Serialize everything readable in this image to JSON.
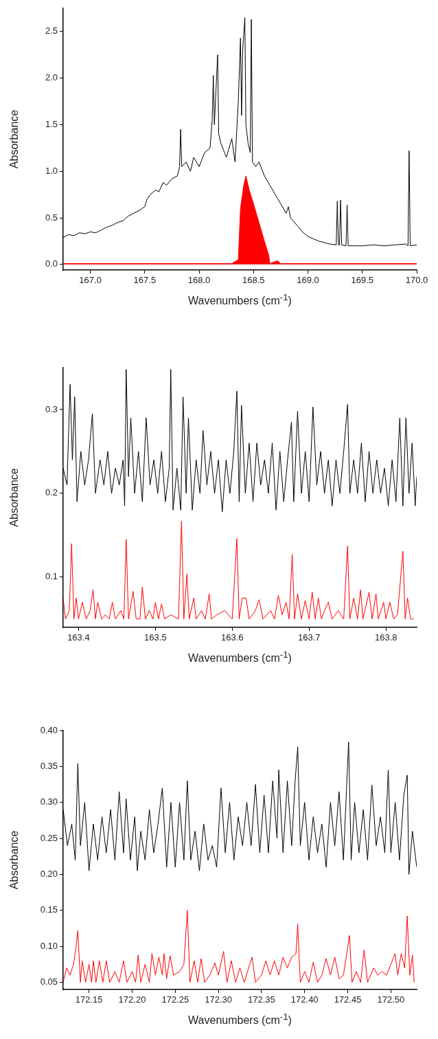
{
  "chart_data": [
    {
      "type": "line",
      "xlabel": "Wavenumbers (cm$^{-1}$)",
      "ylabel": "Absorbance",
      "xlim": [
        166.75,
        170.0
      ],
      "ylim": [
        -0.06,
        2.75
      ],
      "xticks": [
        {
          "value": 167,
          "label": "167.0"
        },
        {
          "value": 167.5,
          "label": "167.5"
        },
        {
          "value": 168,
          "label": "168.0"
        },
        {
          "value": 168.5,
          "label": "168.5"
        },
        {
          "value": 169,
          "label": "169.0"
        },
        {
          "value": 169.5,
          "label": "169.5"
        },
        {
          "value": 170,
          "label": "170.0"
        }
      ],
      "yticks": [
        {
          "value": 0,
          "label": "0.0"
        },
        0.5,
        {
          "value": 1,
          "label": "1.0"
        },
        1.5,
        {
          "value": 2,
          "label": "2.0"
        },
        2.5
      ],
      "series": [
        {
          "color": "#000000",
          "x": [
            166.75,
            166.8,
            166.85,
            166.9,
            166.95,
            167.0,
            167.05,
            167.1,
            167.15,
            167.2,
            167.25,
            167.3,
            167.35,
            167.4,
            167.45,
            167.5,
            167.52,
            167.55,
            167.6,
            167.63,
            167.67,
            167.7,
            167.75,
            167.8,
            167.82,
            167.83,
            167.84,
            167.88,
            167.92,
            167.95,
            168.0,
            168.05,
            168.1,
            168.12,
            168.13,
            168.14,
            168.17,
            168.18,
            168.2,
            168.25,
            168.3,
            168.33,
            168.36,
            168.38,
            168.39,
            168.4,
            168.42,
            168.43,
            168.45,
            168.47,
            168.48,
            168.49,
            168.52,
            168.55,
            168.6,
            168.65,
            168.7,
            168.75,
            168.8,
            168.82,
            168.84,
            168.9,
            168.95,
            169.0,
            169.1,
            169.2,
            169.26,
            169.27,
            169.28,
            169.29,
            169.3,
            169.31,
            169.35,
            169.36,
            169.37,
            169.5,
            169.6,
            169.7,
            169.8,
            169.9,
            169.92,
            169.93,
            169.94,
            170.0
          ],
          "values": [
            0.29,
            0.32,
            0.31,
            0.34,
            0.33,
            0.35,
            0.34,
            0.37,
            0.4,
            0.42,
            0.45,
            0.47,
            0.52,
            0.55,
            0.58,
            0.62,
            0.7,
            0.75,
            0.8,
            0.78,
            0.88,
            0.85,
            0.92,
            0.95,
            1.05,
            1.45,
            1.05,
            1.1,
            1.0,
            1.15,
            1.05,
            1.2,
            1.25,
            1.55,
            2.03,
            1.5,
            2.25,
            1.4,
            1.3,
            1.15,
            1.35,
            1.1,
            1.75,
            2.43,
            1.6,
            2.3,
            2.65,
            1.5,
            1.3,
            1.2,
            2.63,
            1.1,
            1.05,
            1.1,
            0.95,
            0.85,
            0.75,
            0.65,
            0.55,
            0.62,
            0.5,
            0.42,
            0.35,
            0.3,
            0.25,
            0.22,
            0.21,
            0.68,
            0.21,
            0.21,
            0.69,
            0.21,
            0.2,
            0.64,
            0.2,
            0.2,
            0.21,
            0.2,
            0.21,
            0.22,
            0.2,
            1.22,
            0.2,
            0.21
          ]
        },
        {
          "type": "area",
          "color": "#ff0000",
          "x": [
            166.75,
            167.5,
            168.3,
            168.36,
            168.38,
            168.41,
            168.43,
            168.46,
            168.5,
            168.55,
            168.6,
            168.64,
            168.65,
            168.72,
            168.75,
            170.0
          ],
          "values": [
            0.01,
            0.01,
            0.01,
            0.05,
            0.6,
            0.85,
            0.95,
            0.8,
            0.65,
            0.45,
            0.25,
            0.1,
            0.01,
            0.04,
            0.01,
            0.01
          ]
        }
      ]
    },
    {
      "type": "line",
      "xlabel": "Wavenumbers (cm$^{-1}$)",
      "ylabel": "Absorbance",
      "xlim": [
        163.38,
        163.84
      ],
      "ylim": [
        0.04,
        0.35
      ],
      "xticks": [
        163.4,
        163.5,
        163.6,
        163.7,
        163.8
      ],
      "yticks": [
        0.1,
        0.2,
        0.3
      ],
      "series": [
        {
          "color": "#000000",
          "x": [
            163.38,
            163.385,
            163.389,
            163.392,
            163.395,
            163.398,
            163.403,
            163.408,
            163.413,
            163.418,
            163.422,
            163.428,
            163.433,
            163.438,
            163.443,
            163.448,
            163.453,
            163.458,
            163.46,
            163.462,
            163.465,
            163.468,
            163.473,
            163.478,
            163.483,
            163.488,
            163.493,
            163.498,
            163.503,
            163.508,
            163.513,
            163.518,
            163.52,
            163.523,
            163.528,
            163.533,
            163.536,
            163.54,
            163.543,
            163.548,
            163.553,
            163.558,
            163.562,
            163.567,
            163.572,
            163.577,
            163.582,
            163.587,
            163.592,
            163.597,
            163.602,
            163.606,
            163.609,
            163.612,
            163.617,
            163.622,
            163.627,
            163.632,
            163.637,
            163.642,
            163.647,
            163.652,
            163.657,
            163.662,
            163.667,
            163.672,
            163.677,
            163.68,
            163.685,
            163.69,
            163.695,
            163.7,
            163.705,
            163.71,
            163.715,
            163.72,
            163.725,
            163.73,
            163.735,
            163.74,
            163.745,
            163.75,
            163.753,
            163.758,
            163.763,
            163.768,
            163.773,
            163.778,
            163.783,
            163.788,
            163.793,
            163.798,
            163.803,
            163.808,
            163.813,
            163.818,
            163.822,
            163.826,
            163.83,
            163.834,
            163.838,
            163.84
          ],
          "values": [
            0.23,
            0.21,
            0.33,
            0.24,
            0.315,
            0.19,
            0.25,
            0.21,
            0.24,
            0.295,
            0.2,
            0.24,
            0.21,
            0.25,
            0.2,
            0.23,
            0.21,
            0.24,
            0.185,
            0.348,
            0.22,
            0.29,
            0.2,
            0.25,
            0.19,
            0.29,
            0.21,
            0.24,
            0.2,
            0.25,
            0.19,
            0.23,
            0.348,
            0.18,
            0.23,
            0.18,
            0.315,
            0.2,
            0.29,
            0.18,
            0.24,
            0.2,
            0.275,
            0.21,
            0.25,
            0.2,
            0.24,
            0.178,
            0.24,
            0.2,
            0.25,
            0.322,
            0.19,
            0.305,
            0.2,
            0.26,
            0.19,
            0.26,
            0.21,
            0.24,
            0.2,
            0.26,
            0.18,
            0.25,
            0.19,
            0.24,
            0.285,
            0.19,
            0.298,
            0.2,
            0.25,
            0.19,
            0.303,
            0.21,
            0.25,
            0.2,
            0.24,
            0.185,
            0.24,
            0.2,
            0.25,
            0.306,
            0.2,
            0.24,
            0.2,
            0.26,
            0.19,
            0.25,
            0.2,
            0.24,
            0.2,
            0.23,
            0.185,
            0.24,
            0.19,
            0.29,
            0.185,
            0.29,
            0.2,
            0.26,
            0.185,
            0.22
          ]
        },
        {
          "color": "#ff0000",
          "x": [
            163.38,
            163.383,
            163.388,
            163.391,
            163.394,
            163.397,
            163.4,
            163.405,
            163.41,
            163.415,
            163.419,
            163.422,
            163.425,
            163.43,
            163.435,
            163.44,
            163.444,
            163.448,
            163.455,
            163.459,
            163.462,
            163.465,
            163.471,
            163.475,
            163.48,
            163.483,
            163.487,
            163.492,
            163.497,
            163.5,
            163.504,
            163.508,
            163.512,
            163.52,
            163.53,
            163.534,
            163.537,
            163.541,
            163.544,
            163.55,
            163.553,
            163.56,
            163.565,
            163.57,
            163.573,
            163.58,
            163.59,
            163.6,
            163.606,
            163.609,
            163.613,
            163.618,
            163.622,
            163.63,
            163.635,
            163.64,
            163.65,
            163.655,
            163.66,
            163.665,
            163.67,
            163.674,
            163.678,
            163.681,
            163.685,
            163.69,
            163.695,
            163.7,
            163.704,
            163.708,
            163.712,
            163.716,
            163.72,
            163.725,
            163.73,
            163.738,
            163.745,
            163.75,
            163.753,
            163.758,
            163.763,
            163.767,
            163.77,
            163.778,
            163.782,
            163.787,
            163.79,
            163.797,
            163.8,
            163.805,
            163.81,
            163.815,
            163.822,
            163.825,
            163.828,
            163.832,
            163.836
          ],
          "values": [
            0.075,
            0.05,
            0.06,
            0.14,
            0.05,
            0.075,
            0.05,
            0.07,
            0.05,
            0.06,
            0.085,
            0.05,
            0.07,
            0.05,
            0.055,
            0.05,
            0.07,
            0.05,
            0.06,
            0.05,
            0.145,
            0.05,
            0.083,
            0.05,
            0.05,
            0.088,
            0.05,
            0.06,
            0.05,
            0.07,
            0.05,
            0.068,
            0.05,
            0.055,
            0.05,
            0.167,
            0.05,
            0.104,
            0.05,
            0.075,
            0.05,
            0.06,
            0.05,
            0.08,
            0.05,
            0.055,
            0.06,
            0.05,
            0.146,
            0.05,
            0.075,
            0.075,
            0.05,
            0.06,
            0.073,
            0.05,
            0.06,
            0.05,
            0.078,
            0.055,
            0.07,
            0.05,
            0.127,
            0.05,
            0.08,
            0.05,
            0.072,
            0.05,
            0.082,
            0.05,
            0.075,
            0.05,
            0.06,
            0.07,
            0.05,
            0.06,
            0.05,
            0.137,
            0.05,
            0.075,
            0.05,
            0.085,
            0.05,
            0.082,
            0.05,
            0.08,
            0.05,
            0.07,
            0.05,
            0.07,
            0.05,
            0.055,
            0.131,
            0.05,
            0.075,
            0.05,
            0.05
          ]
        }
      ]
    },
    {
      "type": "line",
      "xlabel": "Wavenumbers (cm$^{-1}$)",
      "ylabel": "Absorbance",
      "xlim": [
        172.12,
        172.53
      ],
      "ylim": [
        0.04,
        0.4
      ],
      "xticks": [
        172.15,
        {
          "value": 172.2,
          "label": "172.20"
        },
        172.25,
        {
          "value": 172.3,
          "label": "172.30"
        },
        172.35,
        {
          "value": 172.4,
          "label": "172.40"
        },
        172.45,
        {
          "value": 172.5,
          "label": "172.50"
        }
      ],
      "yticks": [
        0.05,
        {
          "value": 0.1,
          "label": "0.10"
        },
        0.15,
        {
          "value": 0.2,
          "label": "0.20"
        },
        0.25,
        {
          "value": 0.3,
          "label": "0.30"
        },
        0.35,
        {
          "value": 0.4,
          "label": "0.40"
        }
      ],
      "series": [
        {
          "color": "#000000",
          "x": [
            172.12,
            172.125,
            172.13,
            172.134,
            172.137,
            172.14,
            172.145,
            172.15,
            172.155,
            172.16,
            172.165,
            172.17,
            172.175,
            172.18,
            172.185,
            172.19,
            172.193,
            172.198,
            172.203,
            172.206,
            172.21,
            172.215,
            172.22,
            172.225,
            172.23,
            172.235,
            172.24,
            172.245,
            172.25,
            172.255,
            172.26,
            172.264,
            172.268,
            172.273,
            172.278,
            172.283,
            172.288,
            172.293,
            172.298,
            172.303,
            172.308,
            172.313,
            172.318,
            172.323,
            172.328,
            172.333,
            172.338,
            172.343,
            172.348,
            172.353,
            172.358,
            172.363,
            172.368,
            172.37,
            172.375,
            172.38,
            172.385,
            172.389,
            172.392,
            172.395,
            172.4,
            172.405,
            172.41,
            172.415,
            172.42,
            172.425,
            172.43,
            172.435,
            172.44,
            172.445,
            172.451,
            172.454,
            172.458,
            172.463,
            172.468,
            172.473,
            172.478,
            172.483,
            172.488,
            172.493,
            172.497,
            172.5,
            172.505,
            172.51,
            172.515,
            172.519,
            172.521,
            172.525,
            172.53
          ],
          "values": [
            0.29,
            0.24,
            0.27,
            0.22,
            0.354,
            0.24,
            0.3,
            0.205,
            0.27,
            0.22,
            0.28,
            0.23,
            0.29,
            0.22,
            0.315,
            0.23,
            0.305,
            0.22,
            0.28,
            0.205,
            0.26,
            0.22,
            0.29,
            0.23,
            0.27,
            0.32,
            0.21,
            0.3,
            0.21,
            0.3,
            0.22,
            0.33,
            0.22,
            0.26,
            0.205,
            0.27,
            0.22,
            0.24,
            0.21,
            0.32,
            0.23,
            0.3,
            0.22,
            0.28,
            0.24,
            0.3,
            0.24,
            0.325,
            0.23,
            0.31,
            0.23,
            0.33,
            0.25,
            0.345,
            0.23,
            0.33,
            0.24,
            0.33,
            0.377,
            0.24,
            0.3,
            0.22,
            0.28,
            0.23,
            0.27,
            0.21,
            0.3,
            0.24,
            0.315,
            0.22,
            0.384,
            0.22,
            0.3,
            0.23,
            0.29,
            0.22,
            0.324,
            0.24,
            0.28,
            0.23,
            0.345,
            0.23,
            0.3,
            0.22,
            0.31,
            0.338,
            0.2,
            0.26,
            0.21
          ]
        },
        {
          "color": "#ff0000",
          "x": [
            172.12,
            172.124,
            172.128,
            172.132,
            172.135,
            172.137,
            172.14,
            172.142,
            172.146,
            172.15,
            172.153,
            172.155,
            172.158,
            172.162,
            172.166,
            172.17,
            172.174,
            172.18,
            172.185,
            172.19,
            172.194,
            172.2,
            172.204,
            172.207,
            172.21,
            172.215,
            172.22,
            172.223,
            172.227,
            172.231,
            172.235,
            172.237,
            172.24,
            172.244,
            172.248,
            172.255,
            172.26,
            172.264,
            172.267,
            172.272,
            172.276,
            172.28,
            172.284,
            172.29,
            172.296,
            172.3,
            172.306,
            172.31,
            172.315,
            172.32,
            172.325,
            172.33,
            172.335,
            172.339,
            172.343,
            172.35,
            172.355,
            172.36,
            172.365,
            172.37,
            172.375,
            172.38,
            172.385,
            172.39,
            172.392,
            172.395,
            172.4,
            172.405,
            172.41,
            172.415,
            172.42,
            172.425,
            172.43,
            172.435,
            172.44,
            172.445,
            172.452,
            172.455,
            172.46,
            172.465,
            172.469,
            172.473,
            172.48,
            172.485,
            172.49,
            172.495,
            172.5,
            172.505,
            172.508,
            172.512,
            172.516,
            172.519,
            172.522,
            172.525,
            172.527
          ],
          "values": [
            0.05,
            0.07,
            0.06,
            0.075,
            0.1,
            0.122,
            0.05,
            0.08,
            0.05,
            0.075,
            0.05,
            0.08,
            0.05,
            0.08,
            0.05,
            0.08,
            0.05,
            0.065,
            0.05,
            0.08,
            0.05,
            0.065,
            0.05,
            0.088,
            0.05,
            0.075,
            0.05,
            0.09,
            0.06,
            0.085,
            0.06,
            0.09,
            0.055,
            0.087,
            0.06,
            0.065,
            0.075,
            0.15,
            0.05,
            0.08,
            0.05,
            0.083,
            0.05,
            0.06,
            0.077,
            0.06,
            0.093,
            0.05,
            0.08,
            0.05,
            0.07,
            0.05,
            0.07,
            0.085,
            0.05,
            0.06,
            0.08,
            0.06,
            0.08,
            0.06,
            0.085,
            0.07,
            0.085,
            0.09,
            0.131,
            0.05,
            0.065,
            0.05,
            0.078,
            0.05,
            0.06,
            0.083,
            0.06,
            0.085,
            0.055,
            0.06,
            0.115,
            0.05,
            0.065,
            0.05,
            0.095,
            0.05,
            0.07,
            0.06,
            0.065,
            0.06,
            0.075,
            0.09,
            0.06,
            0.09,
            0.07,
            0.142,
            0.06,
            0.088,
            0.05
          ]
        }
      ]
    }
  ]
}
